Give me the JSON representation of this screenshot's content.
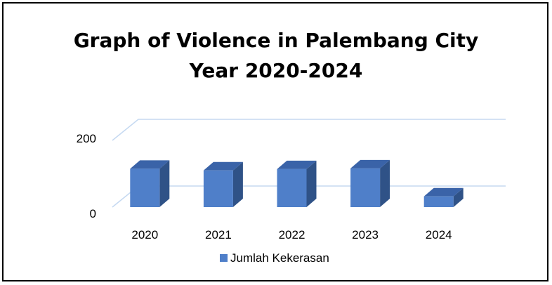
{
  "chart_data": {
    "type": "bar",
    "title": [
      "Graph of Violence in Palembang City",
      "Year 2020-2024"
    ],
    "categories": [
      "2020",
      "2021",
      "2022",
      "2023",
      "2024"
    ],
    "series": [
      {
        "name": "Jumlah Kekerasan",
        "values": [
          115,
          110,
          114,
          116,
          32
        ]
      }
    ],
    "yticks": [
      "200",
      "0"
    ],
    "ylim": [
      0,
      200
    ],
    "grid": true,
    "legend": "bottom",
    "colors": {
      "front": "#4f7fc9",
      "side": "#2f5287",
      "top": "#3a63a8",
      "grid": "#c5d9f1"
    }
  }
}
